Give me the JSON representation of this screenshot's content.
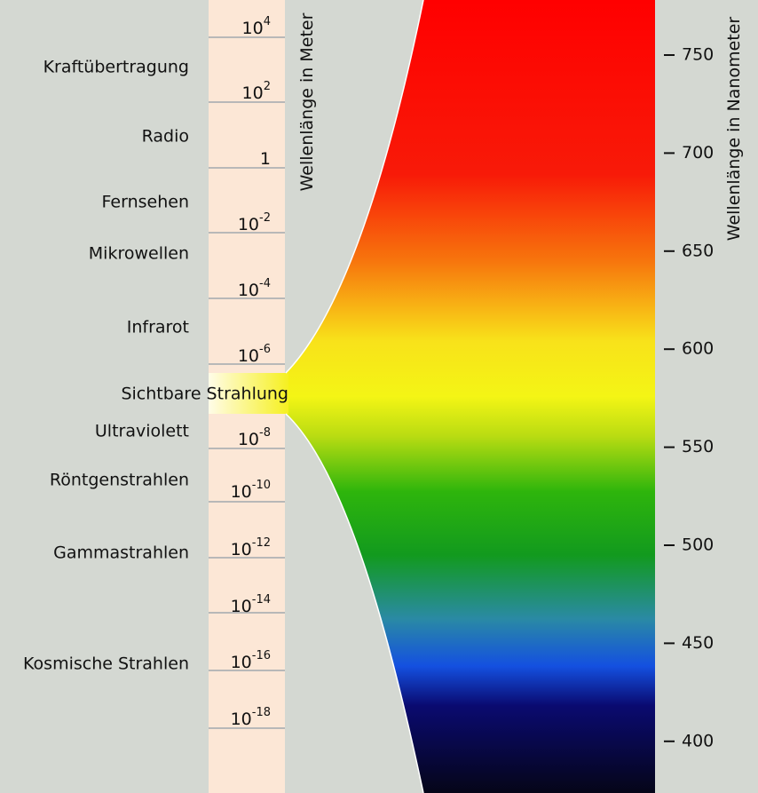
{
  "bands": [
    "Kraftübertragung",
    "Radio",
    "Fernsehen",
    "Mikrowellen",
    "Infrarot",
    "Sichtbare Strahlung",
    "Ultraviolett",
    "Röntgenstrahlen",
    "Gammastrahlen",
    "Kosmische Strahlen"
  ],
  "meter_axis": {
    "title": "Wellenlänge in Meter",
    "labels": [
      {
        "base": "10",
        "exp": "4"
      },
      {
        "base": "10",
        "exp": "2"
      },
      {
        "base": "1"
      },
      {
        "base": "10",
        "exp": "-2"
      },
      {
        "base": "10",
        "exp": "-4"
      },
      {
        "base": "10",
        "exp": "-6"
      },
      {
        "base": "10",
        "exp": "-8"
      },
      {
        "base": "10",
        "exp": "-10"
      },
      {
        "base": "10",
        "exp": "-12"
      },
      {
        "base": "10",
        "exp": "-14"
      },
      {
        "base": "10",
        "exp": "-16"
      },
      {
        "base": "10",
        "exp": "-18"
      }
    ]
  },
  "nanometer_axis": {
    "title": "Wellenlänge in Nanometer",
    "ticks": [
      750,
      700,
      650,
      600,
      550,
      500,
      450,
      400
    ]
  }
}
